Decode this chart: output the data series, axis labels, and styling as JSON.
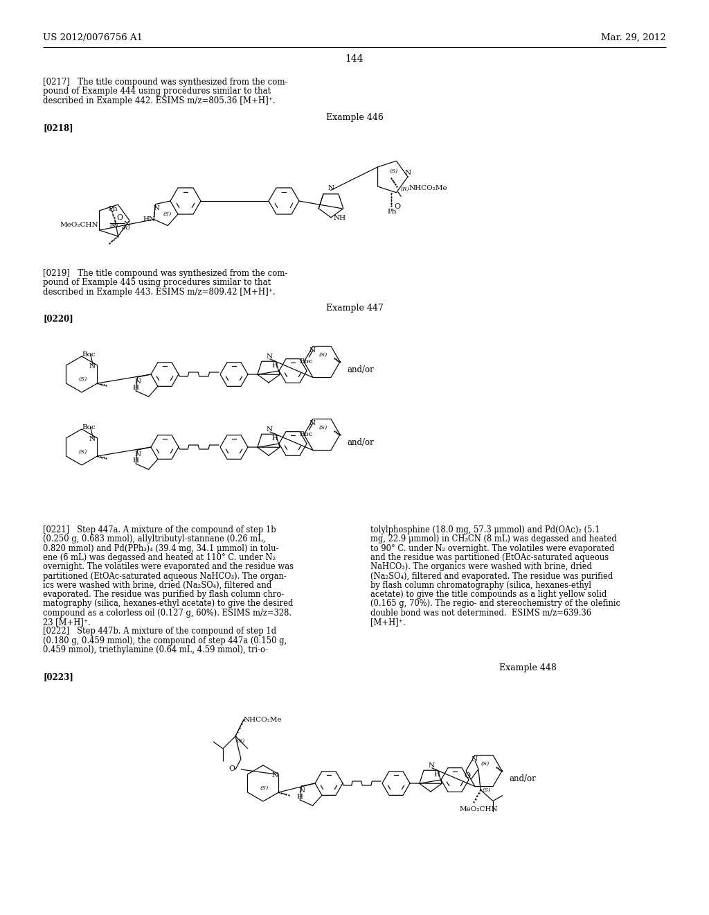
{
  "bg_color": "#ffffff",
  "header_left": "US 2012/0076756 A1",
  "header_right": "Mar. 29, 2012",
  "page_number": "144",
  "para_0217_lines": [
    "[0217]   The title compound was synthesized from the com-",
    "pound of Example 444 using procedures similar to that",
    "described in Example 442. ESIMS m/z=805.36 [M+H]⁺."
  ],
  "example_446": "Example 446",
  "label_0218": "[0218]",
  "para_0219_lines": [
    "[0219]   The title compound was synthesized from the com-",
    "pound of Example 445 using procedures similar to that",
    "described in Example 443. ESIMS m/z=809.42 [M+H]⁺."
  ],
  "example_447": "Example 447",
  "label_0220": "[0220]",
  "col1_lines": [
    "[0221]   Step 447a. A mixture of the compound of step 1b",
    "(0.250 g, 0.683 mmol), allyltributyl-stannane (0.26 mL,",
    "0.820 mmol) and Pd(PPh₃)₄ (39.4 mg, 34.1 μmmol) in tolu-",
    "ene (6 mL) was degassed and heated at 110° C. under N₂",
    "overnight. The volatiles were evaporated and the residue was",
    "partitioned (EtOAc-saturated aqueous NaHCO₃). The organ-",
    "ics were washed with brine, dried (Na₂SO₄), filtered and",
    "evaporated. The residue was purified by flash column chro-",
    "matography (silica, hexanes-ethyl acetate) to give the desired",
    "compound as a colorless oil (0.127 g, 60%). ESIMS m/z=328.",
    "23 [M+H]⁺.",
    "[0222]   Step 447b. A mixture of the compound of step 1d",
    "(0.180 g, 0.459 mmol), the compound of step 447a (0.150 g,",
    "0.459 mmol), triethylamine (0.64 mL, 4.59 mmol), tri-o-"
  ],
  "col2_lines": [
    "tolylphosphine (18.0 mg, 57.3 μmmol) and Pd(OAc)₂ (5.1",
    "mg, 22.9 μmmol) in CH₃CN (8 mL) was degassed and heated",
    "to 90° C. under N₂ overnight. The volatiles were evaporated",
    "and the residue was partitioned (EtOAc-saturated aqueous",
    "NaHCO₃). The organics were washed with brine, dried",
    "(Na₂SO₄), filtered and evaporated. The residue was purified",
    "by flash column chromatography (silica, hexanes-ethyl",
    "acetate) to give the title compounds as a light yellow solid",
    "(0.165 g, 70%). The regio- and stereochemistry of the olefinic",
    "double bond was not determined.  ESIMS m/z=639.36",
    "[M+H]⁺."
  ],
  "example_448": "Example 448",
  "label_0223": "[0223]"
}
